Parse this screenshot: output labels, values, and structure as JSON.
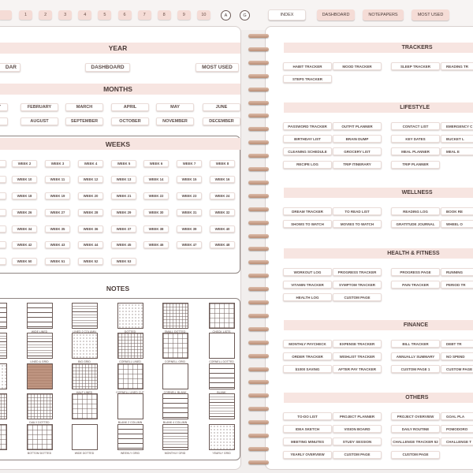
{
  "top_bar": {
    "number_tabs": [
      "1",
      "2",
      "3",
      "4",
      "5",
      "6",
      "7",
      "8",
      "9",
      "10"
    ],
    "letter_tabs": [
      "A",
      "G"
    ],
    "nav": [
      "INDEX",
      "DASHBOARD",
      "NOTEPAPERS",
      "MOST USED"
    ]
  },
  "left_page": {
    "year": {
      "title": "YEAR",
      "items": [
        "DAR",
        "DASHBOARD",
        "MOST USED"
      ]
    },
    "months": {
      "title": "MONTHS",
      "rows": [
        [
          "RY",
          "FEBRUARY",
          "MARCH",
          "APRIL",
          "MAY",
          "JUNE"
        ],
        [
          "AUGUST",
          "SEPTEMBER",
          "OCTOBER",
          "NOVEMBER",
          "DECEMBER"
        ]
      ]
    },
    "weeks": {
      "title": "WEEKS",
      "rows": [
        [
          "WEEK 2",
          "WEEK 3",
          "WEEK 4",
          "WEEK 5",
          "WEEK 6",
          "WEEK 7",
          "WEEK 8"
        ],
        [
          "WEEK 10",
          "WEEK 11",
          "WEEK 12",
          "WEEK 13",
          "WEEK 14",
          "WEEK 15",
          "WEEK 16"
        ],
        [
          "WEEK 18",
          "WEEK 19",
          "WEEK 20",
          "WEEK 21",
          "WEEK 22",
          "WEEK 23",
          "WEEK 24"
        ],
        [
          "WEEK 26",
          "WEEK 27",
          "WEEK 28",
          "WEEK 29",
          "WEEK 30",
          "WEEK 31",
          "WEEK 32"
        ],
        [
          "WEEK 34",
          "WEEK 35",
          "WEEK 36",
          "WEEK 37",
          "WEEK 38",
          "WEEK 39",
          "WEEK 40"
        ],
        [
          "WEEK 42",
          "WEEK 43",
          "WEEK 44",
          "WEEK 45",
          "WEEK 46",
          "WEEK 47",
          "WEEK 48"
        ],
        [
          "WEEK 50",
          "WEEK 51",
          "WEEK 52",
          "WEEK 53"
        ]
      ]
    },
    "notes": {
      "title": "NOTES",
      "rows": [
        [
          "WIDE LINED",
          "LINED 2 COLUMN",
          "DOTTED",
          "SMALL DOTTED",
          "CHECK LISTS"
        ],
        [
          "LINED & GRID",
          "BIG GRID",
          "CORNELL LINED",
          "CORNELL GRID",
          "CORNELL DOTTED"
        ],
        [
          null,
          "HALF LINED",
          "CORNELL LINED CUT",
          "CORNELL BLANK",
          "BLANK"
        ],
        [
          "DAILY DOTTED",
          null,
          "BLANK 2 COLUMN",
          "BLANK 4 COLUMN",
          null
        ],
        [
          "BOTTOM DOTTED",
          "WIDE DOTTED",
          "WEEKLY GRID",
          "MONTHLY GRID",
          "YEARLY GRID"
        ]
      ]
    }
  },
  "right_page": {
    "sections": [
      {
        "title": "TRACKERS",
        "rows": [
          [
            "HABIT TRACKER",
            "MOOD TRACKER",
            "SLEEP TRACKER",
            "READING TR"
          ],
          [
            "STEPS TRACKER"
          ]
        ]
      },
      {
        "title": "LIFESTYLE",
        "rows": [
          [
            "PASSWORD TRACKER",
            "OUTFIT PLANNER",
            "CONTACT LIST",
            "EMERGENCY C"
          ],
          [
            "BIRTHDAY LIST",
            "BRAIN DUMP",
            "KEY DATES",
            "BUCKET L"
          ],
          [
            "CLEANING SCHEDULE",
            "GROCERY LIST",
            "MEAL PLANNER",
            "MEAL E"
          ],
          [
            "RECIPE LOG",
            "TRIP ITINERARY",
            "TRIP PLANNER"
          ]
        ]
      },
      {
        "title": "WELLNESS",
        "rows": [
          [
            "DREAM TRACKER",
            "TO READ LIST",
            "READING LOG",
            "BOOK RE"
          ],
          [
            "SHOWS TO WATCH",
            "MOVIES TO WATCH",
            "GRATITUDE JOURNAL",
            "WHEEL O"
          ]
        ]
      },
      {
        "title": "HEALTH & FITNESS",
        "rows": [
          [
            "WORKOUT LOG",
            "PROGRESS TRACKER",
            "PROGRESS PAGE",
            "RUNNING"
          ],
          [
            "VITAMIN TRACKER",
            "SYMPTOM TRACKER",
            "PAIN TRACKER",
            "PERIOD TR"
          ],
          [
            "HEALTH LOG",
            "CUSTOM PAGE"
          ]
        ]
      },
      {
        "title": "FINANCE",
        "rows": [
          [
            "MONTHLY PAYCHECK",
            "EXPENSE TRACKER",
            "BILL TRACKER",
            "DEBT TR"
          ],
          [
            "ORDER TRACKER",
            "WISHLIST TRACKER",
            "ANNUALLY SUMMARY",
            "NO SPEND"
          ],
          [
            "$1000 SAVING",
            "AFTER PAY TRACKER",
            "CUSTOM PAGE 1",
            "CUSTOM PAGE"
          ]
        ]
      },
      {
        "title": "OTHERS",
        "rows": [
          [
            "TO-DO LIST",
            "PROJECT PLANNER",
            "PROJECT  OVERVIEW",
            "GOAL PLA"
          ],
          [
            "IDEA SKETCH",
            "VISION BOARD",
            "DAILY ROUTINE",
            "POMODORO"
          ],
          [
            "MEETING MINUTES",
            "STUDY SESSION",
            "CHALLENGE TRACKER 52",
            "CHALLENGE T"
          ],
          [
            "YEARLY OVERVIEW",
            "CUSTOM PAGE",
            "CUSTOM PAGE"
          ]
        ]
      }
    ]
  }
}
